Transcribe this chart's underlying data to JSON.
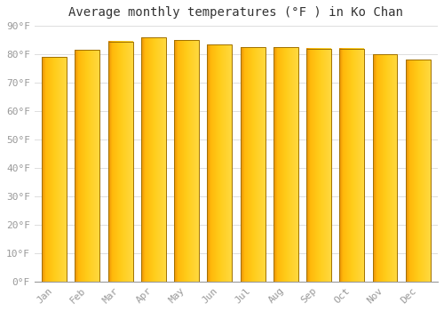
{
  "title": "Average monthly temperatures (°F ) in Ko Chan",
  "months": [
    "Jan",
    "Feb",
    "Mar",
    "Apr",
    "May",
    "Jun",
    "Jul",
    "Aug",
    "Sep",
    "Oct",
    "Nov",
    "Dec"
  ],
  "values": [
    79,
    81.5,
    84.5,
    86,
    85,
    83.5,
    82.5,
    82.5,
    82,
    82,
    80,
    78
  ],
  "ylim": [
    0,
    90
  ],
  "yticks": [
    0,
    10,
    20,
    30,
    40,
    50,
    60,
    70,
    80,
    90
  ],
  "ytick_labels": [
    "0°F",
    "10°F",
    "20°F",
    "30°F",
    "40°F",
    "50°F",
    "60°F",
    "70°F",
    "80°F",
    "90°F"
  ],
  "bar_color_left": "#E8900A",
  "bar_color_mid": "#FFB600",
  "bar_color_right": "#FFD040",
  "bar_outline_color": "#B87800",
  "background_color": "#FFFFFF",
  "grid_color": "#DDDDDD",
  "title_fontsize": 10,
  "tick_fontsize": 8,
  "bar_width": 0.75
}
